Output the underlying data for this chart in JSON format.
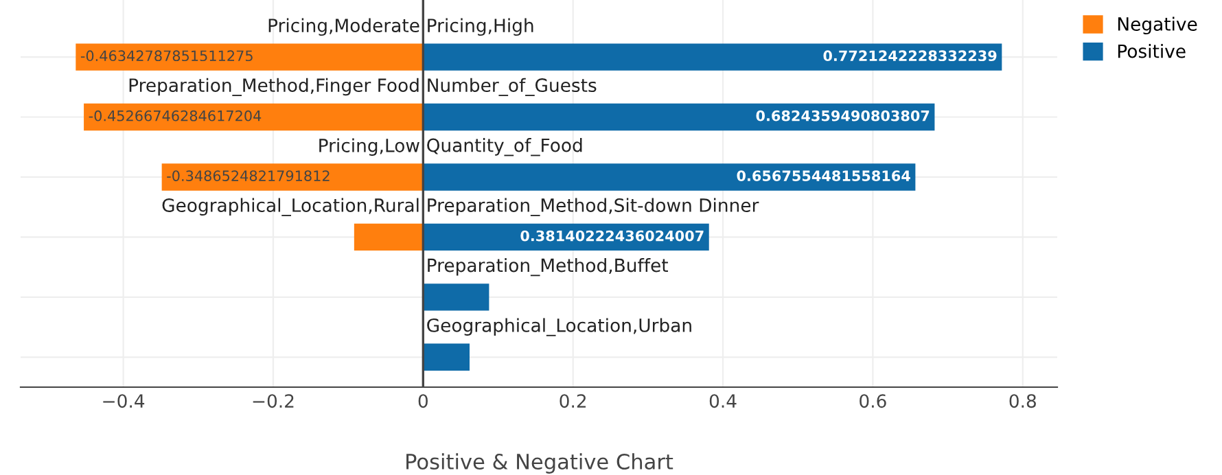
{
  "chart_data": {
    "type": "bar",
    "orientation": "horizontal",
    "xlabel": "Positive & Negative Chart",
    "categories": [
      "Pricing,High",
      "Number_of_Guests",
      "Quantity_of_Food",
      "Preparation_Method,Sit-down Dinner",
      "Preparation_Method,Buffet",
      "Geographical_Location,Urban"
    ],
    "series": [
      {
        "name": "Negative",
        "color": "#ff7f0e",
        "values": [
          -0.46342787851511275,
          -0.45266746284617204,
          -0.3486524821791812,
          -0.092,
          null,
          null
        ],
        "value_labels": [
          "-0.46342787851511275",
          "-0.45266746284617204",
          "-0.3486524821791812",
          null,
          null,
          null
        ]
      },
      {
        "name": "Positive",
        "color": "#0f6ba8",
        "values": [
          0.7721242228332239,
          0.6824359490803807,
          0.6567554481558164,
          0.38140222436024007,
          0.088,
          0.062
        ],
        "value_labels": [
          "0.7721242228332239",
          "0.6824359490803807",
          "0.6567554481558164",
          "0.38140222436024007",
          null,
          null
        ]
      }
    ],
    "annotations": [
      "Pricing,Moderate",
      "Preparation_Method,Finger Food",
      "Pricing,Low",
      "Geographical_Location,Rural"
    ],
    "xlim": [
      -0.537,
      0.846
    ],
    "xticks": [
      {
        "value": -0.4,
        "label": "−0.4"
      },
      {
        "value": -0.2,
        "label": "−0.2"
      },
      0,
      0.2,
      0.4,
      0.6,
      0.8
    ],
    "stacked": true,
    "grid": true,
    "legend": "top right"
  }
}
